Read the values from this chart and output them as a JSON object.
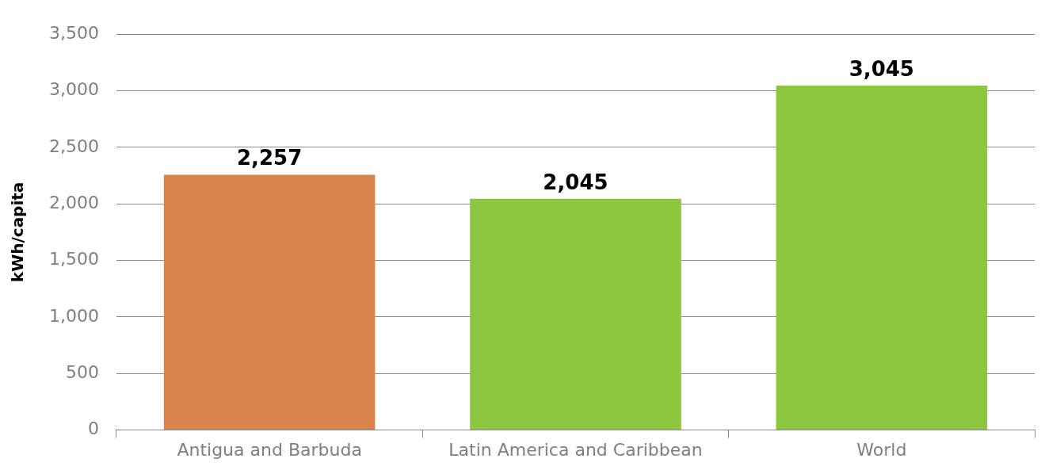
{
  "chart_data": {
    "type": "bar",
    "ylabel": "kWh/capita",
    "categories": [
      "Antigua and Barbuda",
      "Latin America and Caribbean",
      "World"
    ],
    "values": [
      2257,
      2045,
      3045
    ],
    "value_labels": [
      "2,257",
      "2,045",
      "3,045"
    ],
    "colors": [
      "#d9844a",
      "#8dc63f",
      "#8dc63f"
    ],
    "ylim": [
      0,
      3500
    ],
    "yticks": [
      0,
      500,
      {
        "value": 1000,
        "label": "1,000"
      },
      {
        "value": 1500,
        "label": "1,500"
      },
      {
        "value": 2000,
        "label": "2,000"
      },
      {
        "value": 2500,
        "label": "2,500"
      },
      {
        "value": 3000,
        "label": "3,000"
      },
      {
        "value": 3500,
        "label": "3,500"
      }
    ],
    "grid": "y"
  }
}
